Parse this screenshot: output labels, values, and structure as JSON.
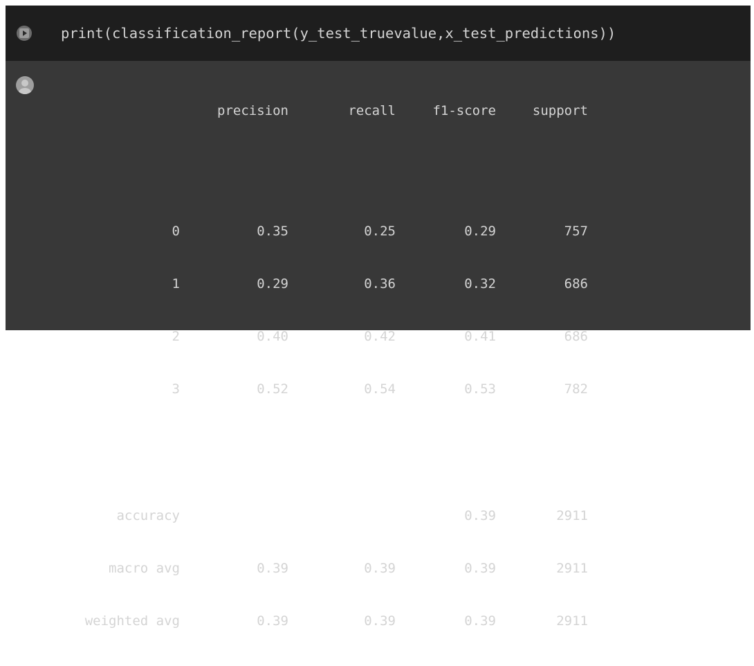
{
  "cell": {
    "code": "print(classification_report(y_test_truevalue,x_test_predictions))",
    "run_icon": "play-icon",
    "output_icon": "user-avatar-icon"
  },
  "report": {
    "headers": [
      "",
      "precision",
      "recall",
      "f1-score",
      "support"
    ],
    "class_rows": [
      {
        "label": "0",
        "precision": "0.35",
        "recall": "0.25",
        "f1": "0.29",
        "support": "757"
      },
      {
        "label": "1",
        "precision": "0.29",
        "recall": "0.36",
        "f1": "0.32",
        "support": "686"
      },
      {
        "label": "2",
        "precision": "0.40",
        "recall": "0.42",
        "f1": "0.41",
        "support": "686"
      },
      {
        "label": "3",
        "precision": "0.52",
        "recall": "0.54",
        "f1": "0.53",
        "support": "782"
      }
    ],
    "summary_rows": [
      {
        "label": "accuracy",
        "precision": "",
        "recall": "",
        "f1": "0.39",
        "support": "2911"
      },
      {
        "label": "macro avg",
        "precision": "0.39",
        "recall": "0.39",
        "f1": "0.39",
        "support": "2911"
      },
      {
        "label": "weighted avg",
        "precision": "0.39",
        "recall": "0.39",
        "f1": "0.39",
        "support": "2911"
      }
    ]
  },
  "colors": {
    "input_bg": "#1e1e1e",
    "output_bg": "#383838",
    "text": "#d4d4d4"
  }
}
